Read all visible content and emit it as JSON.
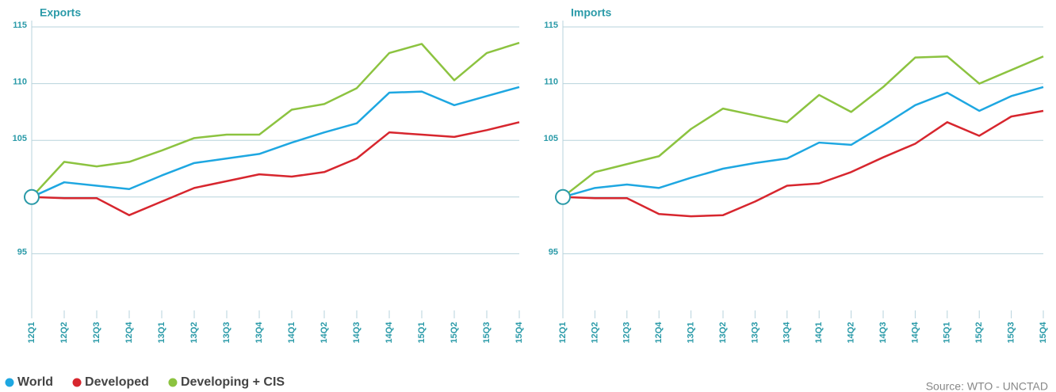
{
  "chart_data": [
    {
      "type": "line",
      "title": "Exports",
      "categories": [
        "12Q1",
        "12Q2",
        "12Q3",
        "12Q4",
        "13Q1",
        "13Q2",
        "13Q3",
        "13Q4",
        "14Q1",
        "14Q2",
        "14Q3",
        "14Q4",
        "15Q1",
        "15Q2",
        "15Q3",
        "15Q4"
      ],
      "series": [
        {
          "name": "World",
          "color": "#1ea7e1",
          "values": [
            100,
            101.3,
            101.0,
            100.7,
            101.9,
            103.0,
            103.4,
            103.8,
            104.8,
            105.7,
            106.5,
            109.2,
            109.3,
            108.1,
            108.9,
            109.7
          ]
        },
        {
          "name": "Developed",
          "color": "#d7262e",
          "values": [
            100,
            99.9,
            99.9,
            98.4,
            99.6,
            100.8,
            101.4,
            102.0,
            101.8,
            102.2,
            103.4,
            105.7,
            105.5,
            105.3,
            105.9,
            106.6
          ]
        },
        {
          "name": "Developing + CIS",
          "color": "#8cc340",
          "values": [
            100,
            103.1,
            102.7,
            103.1,
            104.1,
            105.2,
            105.5,
            105.5,
            107.7,
            108.2,
            109.6,
            112.7,
            113.5,
            110.3,
            112.7,
            113.6
          ]
        }
      ],
      "ylim": [
        90,
        115
      ],
      "yticks": [
        95,
        105,
        110,
        115
      ],
      "baseline": 100,
      "grid": true
    },
    {
      "type": "line",
      "title": "Imports",
      "categories": [
        "12Q1",
        "12Q2",
        "12Q3",
        "12Q4",
        "13Q1",
        "13Q2",
        "13Q3",
        "13Q4",
        "14Q1",
        "14Q2",
        "14Q3",
        "14Q4",
        "15Q1",
        "15Q2",
        "15Q3",
        "15Q4"
      ],
      "series": [
        {
          "name": "World",
          "color": "#1ea7e1",
          "values": [
            100,
            100.8,
            101.1,
            100.8,
            101.7,
            102.5,
            103.0,
            103.4,
            104.8,
            104.6,
            106.3,
            108.1,
            109.2,
            107.6,
            108.9,
            109.7
          ]
        },
        {
          "name": "Developed",
          "color": "#d7262e",
          "values": [
            100,
            99.9,
            99.9,
            98.5,
            98.3,
            98.4,
            99.6,
            101.0,
            101.2,
            102.2,
            103.5,
            104.7,
            106.6,
            105.4,
            107.1,
            107.6
          ]
        },
        {
          "name": "Developing + CIS",
          "color": "#8cc340",
          "values": [
            100,
            102.2,
            102.9,
            103.6,
            106.0,
            107.8,
            107.2,
            106.6,
            109.0,
            107.5,
            109.7,
            112.3,
            112.4,
            110.0,
            111.2,
            112.4
          ]
        }
      ],
      "ylim": [
        90,
        115
      ],
      "yticks": [
        95,
        105,
        110,
        115
      ],
      "baseline": 100,
      "grid": true
    }
  ],
  "source": "Source:  WTO - UNCTAD"
}
